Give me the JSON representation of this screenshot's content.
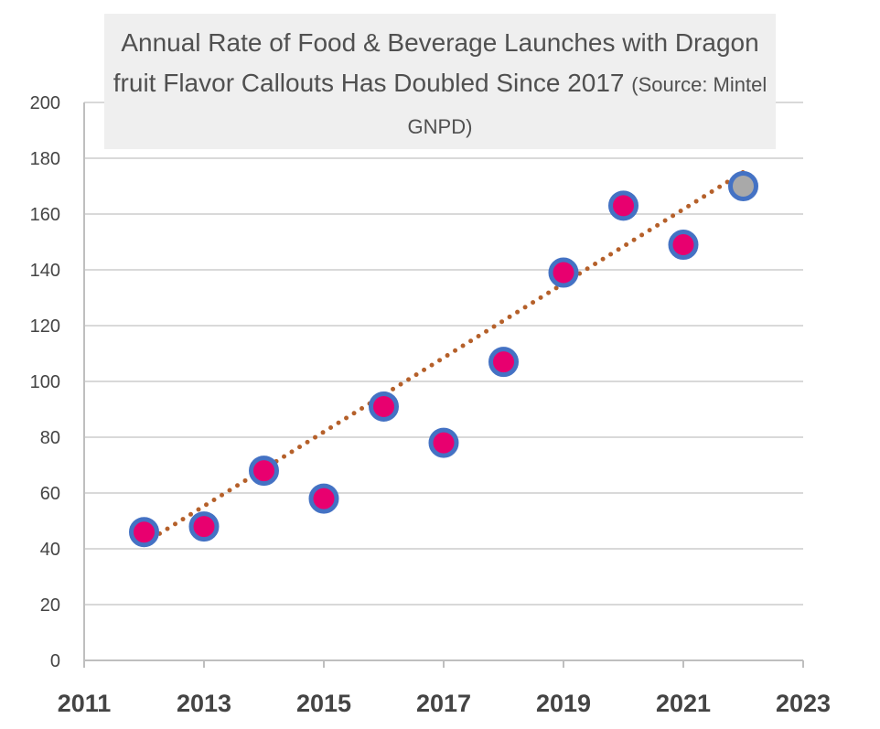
{
  "chart_data": {
    "type": "scatter",
    "title_main": "Annual Rate of Food & Beverage Launches with Dragon fruit Flavor Callouts Has Doubled Since 2017",
    "title_source": "(Source: Mintel GNPD)",
    "xlabel": "",
    "ylabel": "",
    "xlim": [
      2011,
      2023
    ],
    "ylim": [
      0,
      200
    ],
    "x_ticks": [
      "2011",
      "2013",
      "2015",
      "2017",
      "2019",
      "2021",
      "2023"
    ],
    "y_ticks": [
      "0",
      "20",
      "40",
      "60",
      "80",
      "100",
      "120",
      "140",
      "160",
      "180",
      "200"
    ],
    "grid": true,
    "legend": "none",
    "series": [
      {
        "x": [
          2012,
          2013,
          2014,
          2015,
          2016,
          2017,
          2018,
          2019,
          2020,
          2021,
          2022
        ],
        "y": [
          46,
          48,
          68,
          58,
          91,
          78,
          107,
          139,
          163,
          149,
          170
        ],
        "point_colors": [
          "#e8006f",
          "#e8006f",
          "#e8006f",
          "#e8006f",
          "#e8006f",
          "#e8006f",
          "#e8006f",
          "#e8006f",
          "#e8006f",
          "#e8006f",
          "#a9a9a9"
        ]
      }
    ],
    "trendline": {
      "style": "dotted",
      "type": "linear",
      "x": [
        2012,
        2022
      ],
      "y": [
        42,
        175
      ]
    },
    "colors": {
      "marker_border": "#4472c4",
      "marker_fill": "#e8006f",
      "projected_fill": "#a9a9a9",
      "trendline": "#b5602a",
      "grid": "#d9d9d9",
      "axis": "#bfbfbf",
      "title_bg": "#efefef"
    }
  }
}
